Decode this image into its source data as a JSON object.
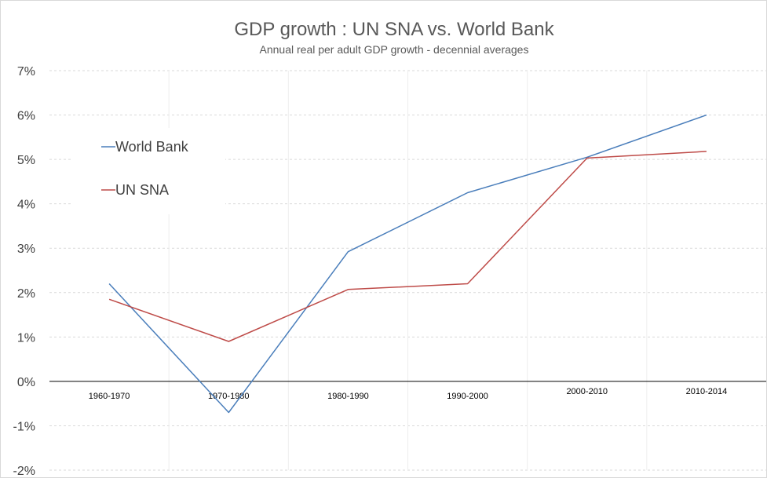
{
  "chart_data": {
    "type": "line",
    "title": "GDP growth : UN SNA vs. World Bank",
    "subtitle": "Annual real per adult GDP growth - decennial averages",
    "categories": [
      "1960-1970",
      "1970-1980",
      "1980-1990",
      "1990-2000",
      "2000-2010",
      "2010-2014"
    ],
    "series": [
      {
        "name": "World Bank",
        "color": "#4A7EBB",
        "values": [
          2.2,
          -0.7,
          2.92,
          4.25,
          5.05,
          6.0
        ]
      },
      {
        "name": "UN SNA",
        "color": "#BE4B48",
        "values": [
          1.85,
          0.9,
          2.07,
          2.2,
          5.03,
          5.18
        ]
      }
    ],
    "ylim": [
      -2,
      7
    ],
    "yticks": [
      -2,
      -1,
      0,
      1,
      2,
      3,
      4,
      5,
      6,
      7
    ],
    "ytick_labels": [
      "-2%",
      "-1%",
      "0%",
      "1%",
      "2%",
      "3%",
      "4%",
      "5%",
      "6%",
      "7%"
    ],
    "grid": true,
    "legend_position": "upper-left"
  }
}
